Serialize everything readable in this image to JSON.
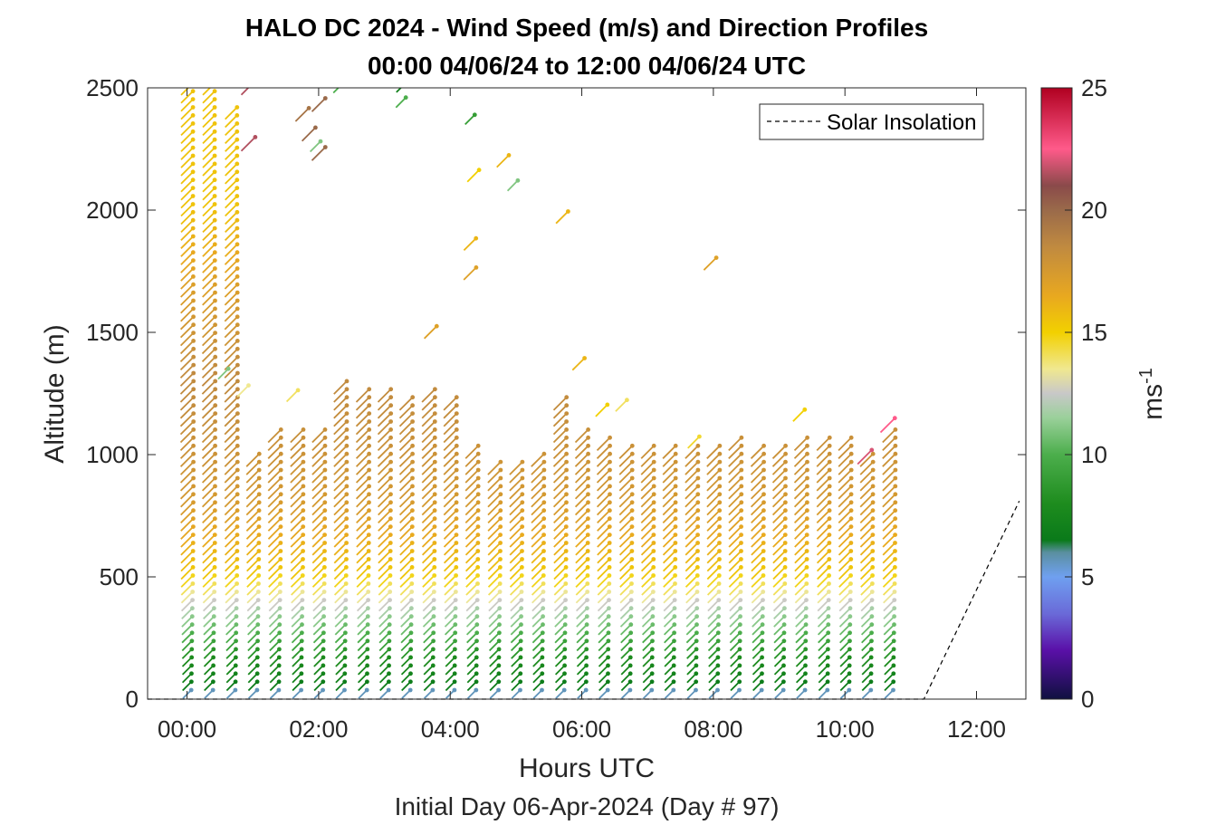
{
  "chart_data": {
    "type": "quiver-profile",
    "title": "HALO DC 2024 - Wind Speed (m/s) and Direction Profiles",
    "subtitle": "00:00 04/06/24 to 12:00 04/06/24  UTC",
    "xlabel": "Hours UTC",
    "xsublabel": "Initial Day 06-Apr-2024 (Day # 97)",
    "ylabel": "Altitude (m)",
    "xlim": [
      -0.6,
      12.75
    ],
    "ylim": [
      0,
      2500
    ],
    "x_ticks": [
      {
        "value": 0,
        "label": "00:00"
      },
      {
        "value": 2,
        "label": "02:00"
      },
      {
        "value": 4,
        "label": "04:00"
      },
      {
        "value": 6,
        "label": "06:00"
      },
      {
        "value": 8,
        "label": "08:00"
      },
      {
        "value": 10,
        "label": "10:00"
      },
      {
        "value": 12,
        "label": "12:00"
      }
    ],
    "y_ticks": [
      {
        "value": 0,
        "label": "0"
      },
      {
        "value": 500,
        "label": "500"
      },
      {
        "value": 1000,
        "label": "1000"
      },
      {
        "value": 1500,
        "label": "1500"
      },
      {
        "value": 2000,
        "label": "2000"
      },
      {
        "value": 2500,
        "label": "2500"
      }
    ],
    "colorbar": {
      "label": "ms",
      "label_superscript": "-1",
      "range": [
        0,
        25
      ],
      "ticks": [
        {
          "value": 0,
          "label": "0"
        },
        {
          "value": 5,
          "label": "5"
        },
        {
          "value": 10,
          "label": "10"
        },
        {
          "value": 15,
          "label": "15"
        },
        {
          "value": 20,
          "label": "20"
        },
        {
          "value": 25,
          "label": "25"
        }
      ],
      "stops": [
        {
          "v": 0,
          "c": "#101040"
        },
        {
          "v": 2,
          "c": "#5a10a8"
        },
        {
          "v": 3.5,
          "c": "#6a6ad8"
        },
        {
          "v": 5,
          "c": "#6fa0f0"
        },
        {
          "v": 6,
          "c": "#5a8fa0"
        },
        {
          "v": 6.5,
          "c": "#0a7a1a"
        },
        {
          "v": 8,
          "c": "#1e8c1e"
        },
        {
          "v": 10,
          "c": "#4cae4c"
        },
        {
          "v": 11.5,
          "c": "#9ad09a"
        },
        {
          "v": 12.5,
          "c": "#c8c8c8"
        },
        {
          "v": 13.5,
          "c": "#f0e890"
        },
        {
          "v": 15,
          "c": "#f2d000"
        },
        {
          "v": 16.5,
          "c": "#e8a820"
        },
        {
          "v": 18.5,
          "c": "#c08a40"
        },
        {
          "v": 20,
          "c": "#9a6a4a"
        },
        {
          "v": 21,
          "c": "#8a4a4a"
        },
        {
          "v": 22.5,
          "c": "#ff5a8a"
        },
        {
          "v": 25,
          "c": "#b00020"
        }
      ]
    },
    "legend": {
      "entries": [
        "Solar Insolation"
      ],
      "placement": "top-right",
      "style": "dashed-black"
    },
    "solar_insolation": {
      "x": [
        -0.6,
        11.2,
        12.65
      ],
      "y": [
        0,
        0,
        810
      ]
    },
    "profiles": {
      "times": [
        0.0,
        0.33,
        0.67,
        1.0,
        1.33,
        1.67,
        2.0,
        2.33,
        2.67,
        3.0,
        3.33,
        3.67,
        4.0,
        4.33,
        4.67,
        5.0,
        5.33,
        5.67,
        6.0,
        6.33,
        6.67,
        7.0,
        7.33,
        7.67,
        8.0,
        8.33,
        8.67,
        9.0,
        9.33,
        9.67,
        10.0,
        10.33,
        10.67
      ],
      "tops": [
        2500,
        2500,
        2400,
        1000,
        1100,
        1100,
        1100,
        1300,
        1270,
        1270,
        1240,
        1260,
        1240,
        1040,
        950,
        960,
        1000,
        1240,
        1100,
        1050,
        1040,
        1040,
        1040,
        1020,
        1040,
        1060,
        1040,
        1040,
        1060,
        1060,
        1060,
        1000,
        1090
      ],
      "altitude_step": 33,
      "wind_dir_deg": 225,
      "speed_profile": [
        {
          "alt": 0,
          "speed": 5
        },
        {
          "alt": 60,
          "speed": 7
        },
        {
          "alt": 160,
          "speed": 8
        },
        {
          "alt": 280,
          "speed": 10.5
        },
        {
          "alt": 360,
          "speed": 12
        },
        {
          "alt": 420,
          "speed": 13.5
        },
        {
          "alt": 520,
          "speed": 15.5
        },
        {
          "alt": 800,
          "speed": 17.5
        },
        {
          "alt": 1000,
          "speed": 18
        },
        {
          "alt": 1300,
          "speed": 18.5
        },
        {
          "alt": 1700,
          "speed": 17
        },
        {
          "alt": 2000,
          "speed": 15.5
        },
        {
          "alt": 2500,
          "speed": 15.5
        }
      ]
    },
    "isolated_vectors": [
      {
        "t": 0.93,
        "alt": 2500,
        "speed": 21.5
      },
      {
        "t": 0.93,
        "alt": 2270,
        "speed": 21.5
      },
      {
        "t": 1.75,
        "alt": 2390,
        "speed": 19.5
      },
      {
        "t": 2.0,
        "alt": 2430,
        "speed": 20
      },
      {
        "t": 1.85,
        "alt": 2310,
        "speed": 20
      },
      {
        "t": 2.0,
        "alt": 2230,
        "speed": 20
      },
      {
        "t": 1.95,
        "alt": 2260,
        "speed": 11
      },
      {
        "t": 2.3,
        "alt": 2500,
        "speed": 10
      },
      {
        "t": 3.25,
        "alt": 2500,
        "speed": 7
      },
      {
        "t": 3.25,
        "alt": 2440,
        "speed": 10
      },
      {
        "t": 4.3,
        "alt": 2370,
        "speed": 9
      },
      {
        "t": 4.35,
        "alt": 2140,
        "speed": 15
      },
      {
        "t": 4.3,
        "alt": 1860,
        "speed": 16
      },
      {
        "t": 4.3,
        "alt": 1740,
        "speed": 17
      },
      {
        "t": 3.7,
        "alt": 1500,
        "speed": 17
      },
      {
        "t": 1.6,
        "alt": 1240,
        "speed": 14
      },
      {
        "t": 0.55,
        "alt": 1330,
        "speed": 11
      },
      {
        "t": 0.85,
        "alt": 1260,
        "speed": 13.5
      },
      {
        "t": 4.8,
        "alt": 2200,
        "speed": 16
      },
      {
        "t": 4.95,
        "alt": 2100,
        "speed": 11
      },
      {
        "t": 5.7,
        "alt": 1970,
        "speed": 16
      },
      {
        "t": 5.95,
        "alt": 1370,
        "speed": 16
      },
      {
        "t": 6.3,
        "alt": 1180,
        "speed": 15
      },
      {
        "t": 6.6,
        "alt": 1200,
        "speed": 14
      },
      {
        "t": 7.95,
        "alt": 1780,
        "speed": 17
      },
      {
        "t": 7.7,
        "alt": 1050,
        "speed": 14.5
      },
      {
        "t": 9.3,
        "alt": 1160,
        "speed": 15
      },
      {
        "t": 10.65,
        "alt": 1120,
        "speed": 22.5
      },
      {
        "t": 10.3,
        "alt": 990,
        "speed": 22
      }
    ]
  }
}
